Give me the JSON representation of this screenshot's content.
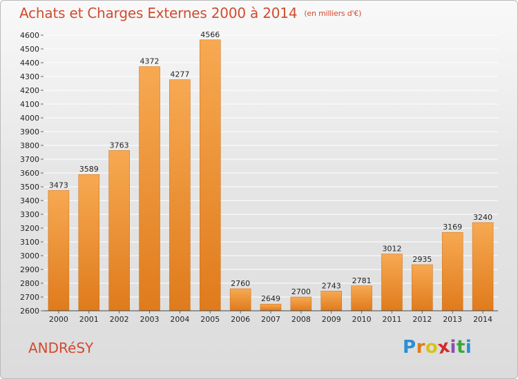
{
  "header": {
    "title": "Achats et Charges Externes 2000 à 2014",
    "unit": "(en milliers d'€)"
  },
  "footer": {
    "commune": "ANDRéSY",
    "logo_letters": [
      "P",
      "r",
      "o",
      "x",
      "i",
      "t",
      "i"
    ],
    "logo_colors": [
      "#2a8fd6",
      "#e07a1a",
      "#d8c21a",
      "#d22b2b",
      "#8a4fb5",
      "#3aa83a",
      "#2a8fd6"
    ]
  },
  "colors": {
    "bar_light": "#f7a952",
    "bar_dark": "#e07d1f",
    "grid": "#ffffff",
    "text_accent": "#d14b2e"
  },
  "chart_data": {
    "type": "bar",
    "title": "Achats et Charges Externes 2000 à 2014",
    "subtitle": "(en milliers d'€)",
    "categories": [
      "2000",
      "2001",
      "2002",
      "2003",
      "2004",
      "2005",
      "2006",
      "2007",
      "2008",
      "2009",
      "2010",
      "2011",
      "2012",
      "2013",
      "2014"
    ],
    "values": [
      3473,
      3589,
      3763,
      4372,
      4277,
      4566,
      2760,
      2649,
      2700,
      2743,
      2781,
      3012,
      2935,
      3169,
      3240
    ],
    "ylim": [
      2600,
      4600
    ],
    "yticks": [
      2600,
      2700,
      2800,
      2900,
      3000,
      3100,
      3200,
      3300,
      3400,
      3500,
      3600,
      3700,
      3800,
      3900,
      4000,
      4100,
      4200,
      4300,
      4400,
      4500,
      4600
    ],
    "grid": true,
    "xlabel": "",
    "ylabel": ""
  }
}
